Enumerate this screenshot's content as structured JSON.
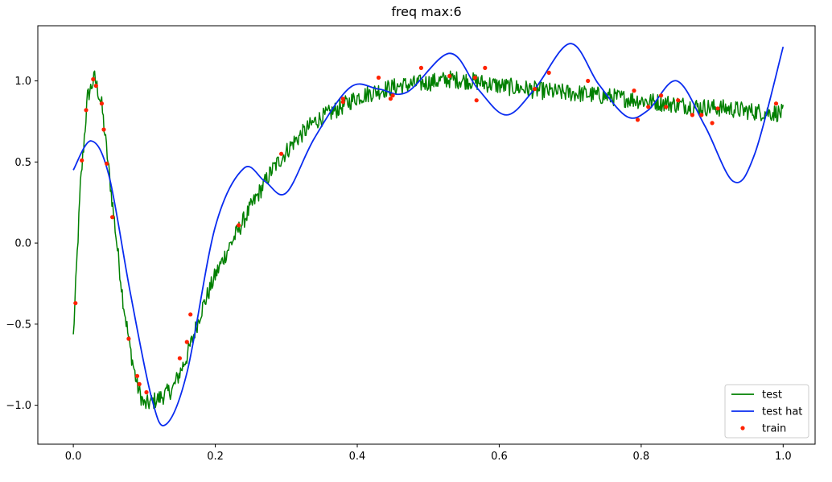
{
  "chart_data": {
    "type": "line",
    "title": "freq max:6",
    "xlabel": "",
    "ylabel": "",
    "xlim": [
      -0.05,
      1.045
    ],
    "ylim": [
      -1.24,
      1.34
    ],
    "x_ticks": [
      0.0,
      0.2,
      0.4,
      0.6,
      0.8,
      1.0
    ],
    "x_tick_labels": [
      "0.0",
      "0.2",
      "0.4",
      "0.6",
      "0.8",
      "1.0"
    ],
    "y_ticks": [
      -1.0,
      -0.5,
      0.0,
      0.5,
      1.0
    ],
    "y_tick_labels": [
      "−1.0",
      "−0.5",
      "0.0",
      "0.5",
      "1.0"
    ],
    "grid": false,
    "legend_position": "bottom-right",
    "series": [
      {
        "name": "test",
        "kind": "line",
        "color": "#008000",
        "x": [
          0.0,
          0.01,
          0.02,
          0.03,
          0.04,
          0.05,
          0.06,
          0.07,
          0.08,
          0.09,
          0.1,
          0.12,
          0.14,
          0.16,
          0.18,
          0.2,
          0.22,
          0.25,
          0.28,
          0.31,
          0.34,
          0.37,
          0.4,
          0.43,
          0.46,
          0.5,
          0.53,
          0.56,
          0.6,
          0.64,
          0.68,
          0.72,
          0.76,
          0.8,
          0.84,
          0.88,
          0.92,
          0.96,
          1.0
        ],
        "y": [
          -0.58,
          0.35,
          0.9,
          1.02,
          0.85,
          0.45,
          0.05,
          -0.35,
          -0.65,
          -0.88,
          -1.0,
          -0.96,
          -0.9,
          -0.7,
          -0.42,
          -0.2,
          -0.02,
          0.22,
          0.45,
          0.62,
          0.75,
          0.82,
          0.9,
          0.94,
          0.97,
          0.99,
          1.01,
          1.0,
          0.97,
          0.95,
          0.93,
          0.92,
          0.9,
          0.88,
          0.86,
          0.84,
          0.83,
          0.81,
          0.8
        ]
      },
      {
        "name": "test hat",
        "kind": "line",
        "color": "#0a2cf0",
        "x": [
          0.0,
          0.025,
          0.05,
          0.08,
          0.11,
          0.13,
          0.16,
          0.2,
          0.24,
          0.27,
          0.3,
          0.34,
          0.39,
          0.43,
          0.47,
          0.53,
          0.57,
          0.61,
          0.65,
          0.7,
          0.74,
          0.78,
          0.81,
          0.85,
          0.89,
          0.93,
          0.96,
          1.0
        ],
        "y": [
          0.45,
          0.63,
          0.42,
          -0.3,
          -0.95,
          -1.12,
          -0.8,
          0.1,
          0.46,
          0.38,
          0.31,
          0.65,
          0.96,
          0.95,
          0.93,
          1.17,
          0.95,
          0.79,
          0.95,
          1.23,
          0.98,
          0.78,
          0.82,
          1.0,
          0.72,
          0.38,
          0.55,
          1.21
        ]
      },
      {
        "name": "train",
        "kind": "scatter",
        "color": "#ff2200",
        "x": [
          0.003,
          0.012,
          0.018,
          0.028,
          0.032,
          0.04,
          0.043,
          0.047,
          0.055,
          0.078,
          0.09,
          0.093,
          0.103,
          0.15,
          0.16,
          0.165,
          0.233,
          0.293,
          0.38,
          0.38,
          0.43,
          0.447,
          0.45,
          0.49,
          0.53,
          0.566,
          0.568,
          0.58,
          0.65,
          0.67,
          0.725,
          0.79,
          0.795,
          0.81,
          0.828,
          0.835,
          0.852,
          0.872,
          0.885,
          0.9,
          0.908,
          0.99
        ],
        "y": [
          -0.37,
          0.51,
          0.82,
          1.01,
          0.97,
          0.86,
          0.7,
          0.49,
          0.16,
          -0.59,
          -0.82,
          -0.87,
          -0.92,
          -0.71,
          -0.61,
          -0.44,
          0.11,
          0.55,
          0.87,
          0.89,
          1.02,
          0.89,
          0.91,
          1.08,
          1.03,
          1.02,
          0.88,
          1.08,
          0.95,
          1.05,
          1.0,
          0.94,
          0.76,
          0.84,
          0.91,
          0.84,
          0.88,
          0.79,
          0.79,
          0.74,
          0.83,
          0.86
        ]
      }
    ]
  }
}
